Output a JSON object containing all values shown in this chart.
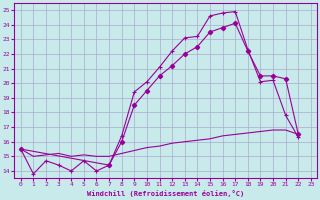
{
  "xlabel": "Windchill (Refroidissement éolien,°C)",
  "bg_color": "#c8eaea",
  "line_color": "#990099",
  "grid_color": "#aaaacc",
  "xlim": [
    -0.5,
    23.5
  ],
  "ylim": [
    13.5,
    25.5
  ],
  "yticks": [
    14,
    15,
    16,
    17,
    18,
    19,
    20,
    21,
    22,
    23,
    24,
    25
  ],
  "xticks": [
    0,
    1,
    2,
    3,
    4,
    5,
    6,
    7,
    8,
    9,
    10,
    11,
    12,
    13,
    14,
    15,
    16,
    17,
    18,
    19,
    20,
    21,
    22,
    23
  ],
  "line1_x": [
    0,
    1,
    2,
    3,
    4,
    5,
    6,
    7,
    8,
    9,
    10,
    11,
    12,
    13,
    14,
    15,
    16,
    17,
    18,
    19,
    20,
    21,
    22
  ],
  "line1_y": [
    15.5,
    13.8,
    14.7,
    14.4,
    14.0,
    14.7,
    14.0,
    14.4,
    16.4,
    19.4,
    20.1,
    21.1,
    22.2,
    23.1,
    23.2,
    24.6,
    24.8,
    24.9,
    22.3,
    20.1,
    20.2,
    17.8,
    16.3
  ],
  "line2_x": [
    0,
    7,
    8,
    9,
    10,
    11,
    12,
    13,
    14,
    15,
    16,
    17,
    18,
    19,
    20,
    21,
    22
  ],
  "line2_y": [
    15.5,
    14.4,
    16.0,
    18.5,
    19.5,
    20.5,
    21.2,
    22.0,
    22.5,
    23.5,
    23.8,
    24.1,
    22.2,
    20.5,
    20.5,
    20.3,
    16.5
  ],
  "line3_x": [
    0,
    1,
    2,
    3,
    4,
    5,
    6,
    7,
    8,
    9,
    10,
    11,
    12,
    13,
    14,
    15,
    16,
    17,
    18,
    19,
    20,
    21,
    22
  ],
  "line3_y": [
    15.5,
    15.0,
    15.1,
    15.2,
    15.0,
    15.1,
    15.0,
    15.0,
    15.2,
    15.4,
    15.6,
    15.7,
    15.9,
    16.0,
    16.1,
    16.2,
    16.4,
    16.5,
    16.6,
    16.7,
    16.8,
    16.8,
    16.5
  ]
}
